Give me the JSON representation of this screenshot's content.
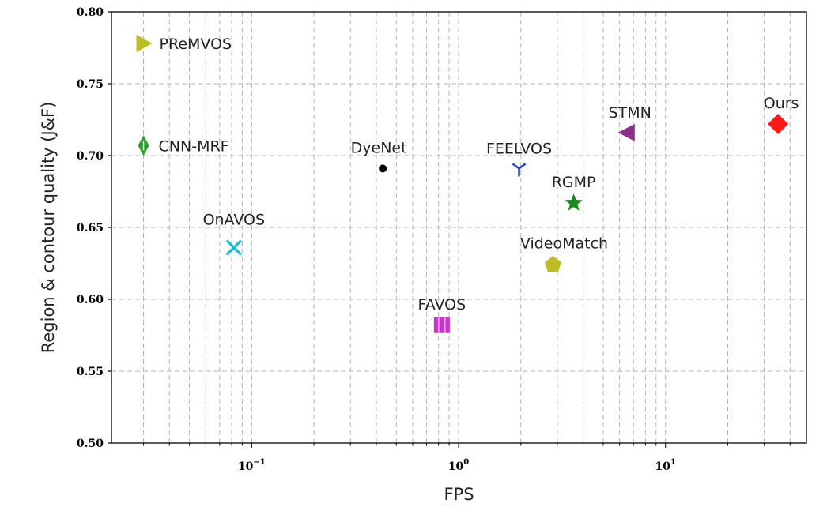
{
  "chart_data": {
    "type": "scatter",
    "xlabel": "FPS",
    "ylabel": "Region & contour quality (J&F)",
    "xscale": "log",
    "xlim": [
      0.021,
      48
    ],
    "ylim": [
      0.5,
      0.8
    ],
    "yticks": [
      "0.50",
      "0.55",
      "0.60",
      "0.65",
      "0.70",
      "0.75",
      "0.80"
    ],
    "xticks": [
      {
        "value": 0.1,
        "base": "10",
        "exp": "−1"
      },
      {
        "value": 1,
        "base": "10",
        "exp": "0"
      },
      {
        "value": 10,
        "base": "10",
        "exp": "1"
      }
    ],
    "grid": true,
    "points": [
      {
        "name": "PReMVOS",
        "x": 0.03,
        "y": 0.778,
        "marker": "triangle-right",
        "color": "#bcbd22"
      },
      {
        "name": "CNN-MRF",
        "x": 0.03,
        "y": 0.707,
        "marker": "thin-diamond",
        "color": "#2ca02c"
      },
      {
        "name": "OnAVOS",
        "x": 0.082,
        "y": 0.636,
        "marker": "x",
        "color": "#17becf"
      },
      {
        "name": "DyeNet",
        "x": 0.43,
        "y": 0.691,
        "marker": "dot",
        "color": "#000000"
      },
      {
        "name": "FAVOS",
        "x": 0.83,
        "y": 0.582,
        "marker": "square",
        "color": "#cc33cc"
      },
      {
        "name": "FEELVOS",
        "x": 1.96,
        "y": 0.691,
        "marker": "tri-down",
        "color": "#1f3fd6"
      },
      {
        "name": "VideoMatch",
        "x": 2.86,
        "y": 0.624,
        "marker": "pentagon",
        "color": "#bcbd22"
      },
      {
        "name": "RGMP",
        "x": 3.6,
        "y": 0.667,
        "marker": "star",
        "color": "#1a8a1a"
      },
      {
        "name": "STMN",
        "x": 6.5,
        "y": 0.716,
        "marker": "triangle-left",
        "color": "#8b2f8b"
      },
      {
        "name": "Ours",
        "x": 35,
        "y": 0.722,
        "marker": "diamond",
        "color": "#ff1a1a"
      }
    ]
  }
}
